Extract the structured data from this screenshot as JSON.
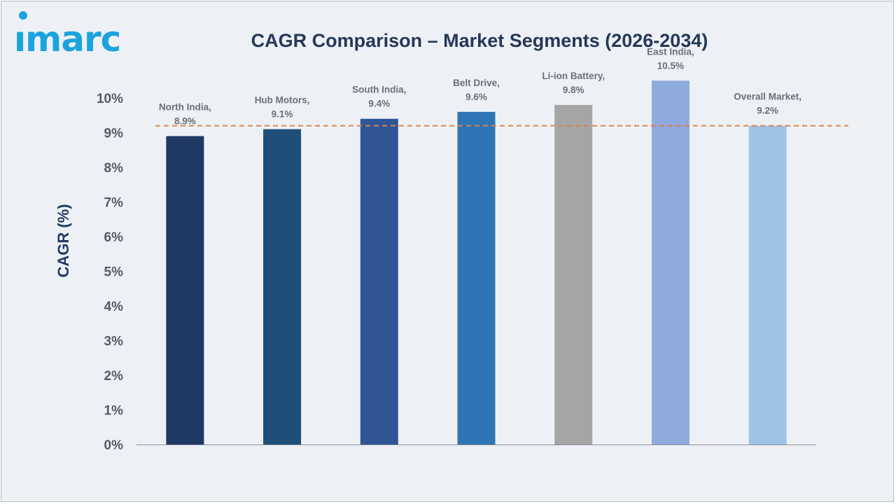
{
  "logo": {
    "text": "ımarc",
    "color": "#1ba3dd"
  },
  "header": {
    "title": "CAGR Comparison – Market Segments (2026-2034)"
  },
  "chart_data": {
    "type": "bar",
    "title": "CAGR Comparison – Market Segments (2026-2034)",
    "ylabel": "CAGR (%)",
    "xlabel": "",
    "ylim": [
      0,
      10
    ],
    "yticks": [
      0,
      1,
      2,
      3,
      4,
      5,
      6,
      7,
      8,
      9,
      10
    ],
    "ytick_labels": [
      "0%",
      "1%",
      "2%",
      "3%",
      "4%",
      "5%",
      "6%",
      "7%",
      "8%",
      "9%",
      "10%"
    ],
    "grid": false,
    "legend": "none",
    "categories": [
      "North India",
      "Hub Motors",
      "South India",
      "Belt Drive",
      "Li-ion Battery",
      "East India",
      "Overall Market"
    ],
    "values": [
      8.9,
      9.1,
      9.4,
      9.6,
      9.8,
      10.5,
      9.2
    ],
    "data_labels": [
      [
        "North India,",
        "8.9%"
      ],
      [
        "Hub Motors,",
        "9.1%"
      ],
      [
        "South India,",
        "9.4%"
      ],
      [
        "Belt Drive,",
        "9.6%"
      ],
      [
        "Li-ion Battery,",
        "9.8%"
      ],
      [
        "East India,",
        "10.5%"
      ],
      [
        "Overall Market,",
        "9.2%"
      ]
    ],
    "colors": [
      "#1f3864",
      "#1f4e79",
      "#2f5597",
      "#2e75b6",
      "#a5a5a5",
      "#8faadc",
      "#9dc3e6"
    ],
    "reference_line": {
      "value": 9.2,
      "style": "dashed",
      "color": "#e0824a"
    }
  }
}
